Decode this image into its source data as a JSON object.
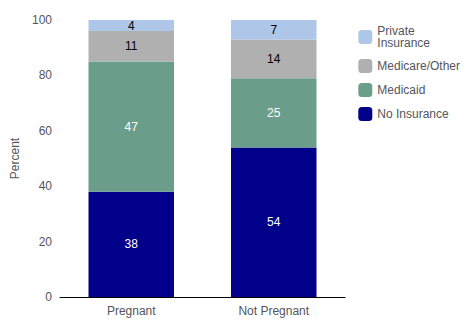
{
  "chart_data": {
    "type": "bar",
    "stacked": true,
    "data_labels": true,
    "grid": false,
    "legend": "right",
    "ylabel": "Percent",
    "categories": [
      "Pregnant",
      "Not Pregnant"
    ],
    "series": [
      {
        "name": "No Insurance",
        "color": "#00008B",
        "values": [
          38,
          54
        ]
      },
      {
        "name": "Medicaid",
        "color": "#6a9e8a",
        "values": [
          47,
          25
        ]
      },
      {
        "name": "Medicare/Other",
        "color": "#b0b0b0",
        "values": [
          11,
          14
        ]
      },
      {
        "name": "Private\nInsurance",
        "color": "#aec6e8",
        "values": [
          4,
          7
        ]
      }
    ],
    "ylim": [
      0,
      100
    ],
    "yticks": [
      0,
      20,
      40,
      60,
      80,
      100
    ]
  }
}
